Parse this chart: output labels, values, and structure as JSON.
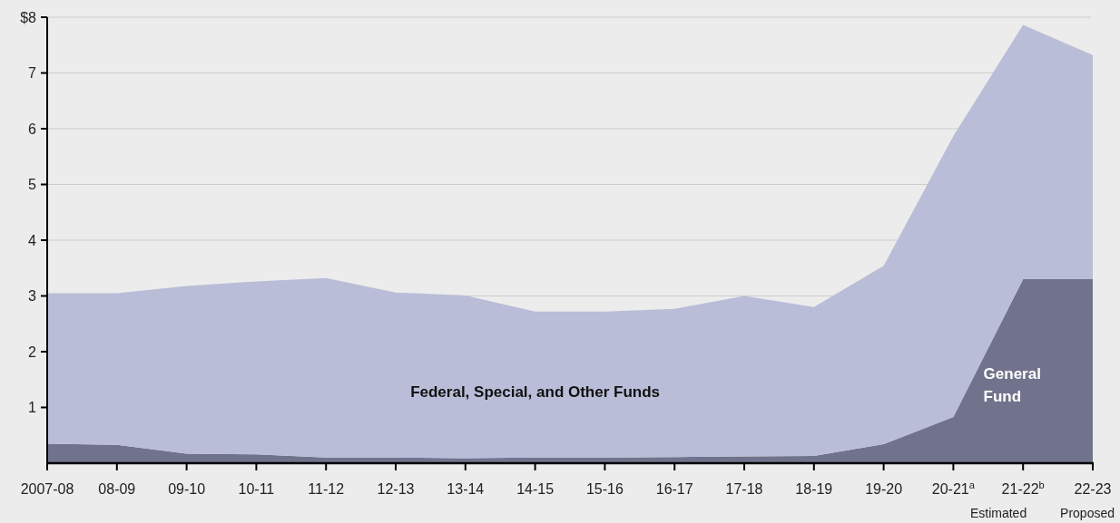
{
  "chart_data": {
    "type": "area",
    "stacked": true,
    "categories": [
      "2007-08",
      "08-09",
      "09-10",
      "10-11",
      "11-12",
      "12-13",
      "13-14",
      "14-15",
      "15-16",
      "16-17",
      "17-18",
      "18-19",
      "19-20",
      "20-21$^{a}$",
      "21-22$^{b}$",
      "22-23"
    ],
    "series": [
      {
        "name": "General Fund",
        "color": "#71738c",
        "values": [
          0.35,
          0.33,
          0.17,
          0.16,
          0.1,
          0.1,
          0.09,
          0.1,
          0.1,
          0.11,
          0.12,
          0.13,
          0.34,
          0.83,
          3.3,
          3.3
        ]
      },
      {
        "name": "Federal, Special, and Other Funds",
        "color": "#b9bdd8",
        "values": [
          2.7,
          2.72,
          3.01,
          3.1,
          3.22,
          2.96,
          2.92,
          2.62,
          2.62,
          2.66,
          2.88,
          2.67,
          3.2,
          5.04,
          4.56,
          4.02
        ]
      }
    ],
    "ylim": [
      0,
      8
    ],
    "yticks": [
      1,
      2,
      3,
      4,
      5,
      6,
      7,
      {
        "value": 8,
        "label": "$8"
      }
    ],
    "grid": "y",
    "legend": false,
    "annotations": [
      "Estimated",
      "Proposed"
    ]
  }
}
